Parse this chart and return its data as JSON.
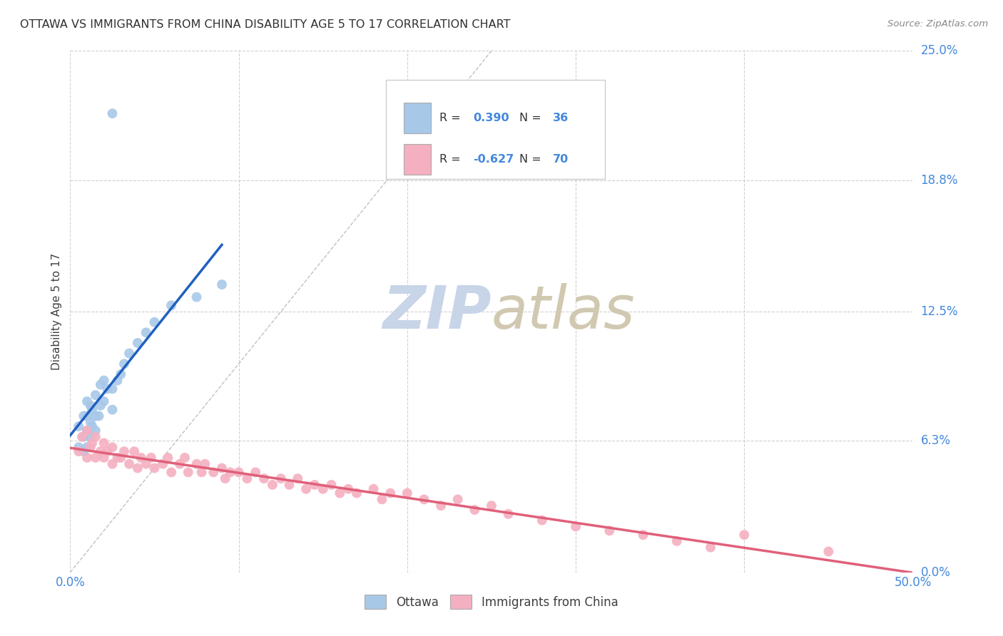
{
  "title": "OTTAWA VS IMMIGRANTS FROM CHINA DISABILITY AGE 5 TO 17 CORRELATION CHART",
  "source": "Source: ZipAtlas.com",
  "ylabel": "Disability Age 5 to 17",
  "xlim": [
    0.0,
    0.5
  ],
  "ylim": [
    0.0,
    0.25
  ],
  "ytick_labels_right": [
    "0.0%",
    "6.3%",
    "12.5%",
    "18.8%",
    "25.0%"
  ],
  "ytick_values_right": [
    0.0,
    0.063,
    0.125,
    0.188,
    0.25
  ],
  "ottawa_R": 0.39,
  "ottawa_N": 36,
  "china_R": -0.627,
  "china_N": 70,
  "ottawa_color": "#a8c8e8",
  "ottawa_line_color": "#2060c0",
  "china_color": "#f4b0c0",
  "china_line_color": "#e0607a",
  "diagonal_color": "#c0c0c0",
  "watermark_zip_color": "#c8d4e8",
  "watermark_atlas_color": "#d0c8b0",
  "title_color": "#303030",
  "axis_label_color": "#404040",
  "tick_color": "#4488dd",
  "grid_color": "#d0d0d0",
  "background_color": "#ffffff",
  "ottawa_x": [
    0.005,
    0.005,
    0.008,
    0.008,
    0.008,
    0.01,
    0.01,
    0.01,
    0.01,
    0.012,
    0.012,
    0.012,
    0.013,
    0.013,
    0.015,
    0.015,
    0.015,
    0.017,
    0.018,
    0.018,
    0.02,
    0.02,
    0.022,
    0.025,
    0.025,
    0.028,
    0.03,
    0.032,
    0.035,
    0.04,
    0.045,
    0.05,
    0.06,
    0.075,
    0.09,
    0.025
  ],
  "ottawa_y": [
    0.06,
    0.07,
    0.058,
    0.065,
    0.075,
    0.06,
    0.068,
    0.075,
    0.082,
    0.065,
    0.072,
    0.08,
    0.07,
    0.078,
    0.068,
    0.075,
    0.085,
    0.075,
    0.08,
    0.09,
    0.082,
    0.092,
    0.088,
    0.078,
    0.088,
    0.092,
    0.095,
    0.1,
    0.105,
    0.11,
    0.115,
    0.12,
    0.128,
    0.132,
    0.138,
    0.22
  ],
  "china_x": [
    0.005,
    0.007,
    0.01,
    0.01,
    0.012,
    0.013,
    0.015,
    0.015,
    0.018,
    0.02,
    0.02,
    0.022,
    0.025,
    0.025,
    0.028,
    0.03,
    0.032,
    0.035,
    0.038,
    0.04,
    0.042,
    0.045,
    0.048,
    0.05,
    0.055,
    0.058,
    0.06,
    0.065,
    0.068,
    0.07,
    0.075,
    0.078,
    0.08,
    0.085,
    0.09,
    0.092,
    0.095,
    0.1,
    0.105,
    0.11,
    0.115,
    0.12,
    0.125,
    0.13,
    0.135,
    0.14,
    0.145,
    0.15,
    0.155,
    0.16,
    0.165,
    0.17,
    0.18,
    0.185,
    0.19,
    0.2,
    0.21,
    0.22,
    0.23,
    0.24,
    0.25,
    0.26,
    0.28,
    0.3,
    0.32,
    0.34,
    0.36,
    0.38,
    0.4,
    0.45
  ],
  "china_y": [
    0.058,
    0.065,
    0.055,
    0.068,
    0.06,
    0.062,
    0.055,
    0.065,
    0.058,
    0.055,
    0.062,
    0.058,
    0.052,
    0.06,
    0.055,
    0.055,
    0.058,
    0.052,
    0.058,
    0.05,
    0.055,
    0.052,
    0.055,
    0.05,
    0.052,
    0.055,
    0.048,
    0.052,
    0.055,
    0.048,
    0.052,
    0.048,
    0.052,
    0.048,
    0.05,
    0.045,
    0.048,
    0.048,
    0.045,
    0.048,
    0.045,
    0.042,
    0.045,
    0.042,
    0.045,
    0.04,
    0.042,
    0.04,
    0.042,
    0.038,
    0.04,
    0.038,
    0.04,
    0.035,
    0.038,
    0.038,
    0.035,
    0.032,
    0.035,
    0.03,
    0.032,
    0.028,
    0.025,
    0.022,
    0.02,
    0.018,
    0.015,
    0.012,
    0.018,
    0.01
  ]
}
